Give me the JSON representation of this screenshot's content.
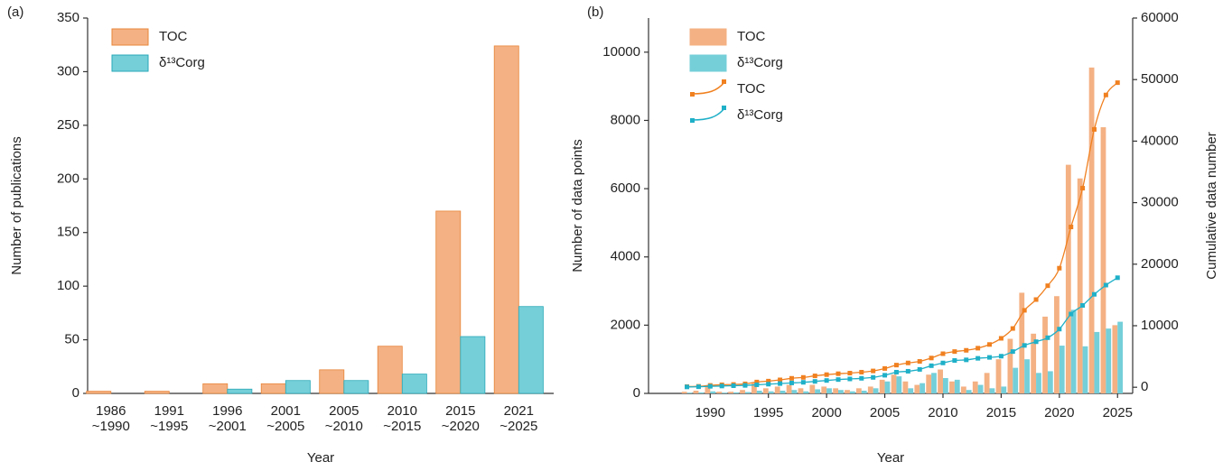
{
  "chart_data": [
    {
      "type": "bar",
      "panel_label": "(a)",
      "xlabel": "Year",
      "ylabel": "Number of publications",
      "categories": [
        [
          "1986",
          "~1990"
        ],
        [
          "1991",
          "~1995"
        ],
        [
          "1996",
          "~2001"
        ],
        [
          "2001",
          "~2005"
        ],
        [
          "2005",
          "~2010"
        ],
        [
          "2010",
          "~2015"
        ],
        [
          "2015",
          "~2020"
        ],
        [
          "2021",
          "~2025"
        ]
      ],
      "series": [
        {
          "name": "TOC",
          "color": "#f4b183",
          "edge": "#e8863a",
          "values": [
            2,
            2,
            9,
            9,
            22,
            44,
            170,
            324
          ]
        },
        {
          "name": "δ¹³Corg",
          "color": "#74cfd9",
          "edge": "#2aa9b8",
          "values": [
            0,
            0,
            4,
            12,
            12,
            18,
            53,
            81
          ]
        }
      ],
      "ylim": [
        0,
        350
      ],
      "yticks": [
        0,
        50,
        100,
        150,
        200,
        250,
        300,
        350
      ]
    },
    {
      "type": "combo",
      "panel_label": "(b)",
      "xlabel": "Year",
      "ylabel": "Number of data points",
      "y2label": "Cumulative data number",
      "x": [
        1988,
        1989,
        1990,
        1991,
        1992,
        1993,
        1994,
        1995,
        1996,
        1997,
        1998,
        1999,
        2000,
        2001,
        2002,
        2003,
        2004,
        2005,
        2006,
        2007,
        2008,
        2009,
        2010,
        2011,
        2012,
        2013,
        2014,
        2015,
        2016,
        2017,
        2018,
        2019,
        2020,
        2021,
        2022,
        2023,
        2024,
        2025
      ],
      "series": [
        {
          "name": "TOC",
          "type": "bar",
          "color": "#f4b183",
          "values": [
            50,
            80,
            200,
            50,
            50,
            100,
            300,
            150,
            200,
            250,
            150,
            250,
            200,
            150,
            100,
            150,
            200,
            400,
            550,
            350,
            250,
            550,
            700,
            350,
            200,
            350,
            600,
            1000,
            1600,
            2950,
            1750,
            2250,
            2850,
            6700,
            6300,
            9550,
            7800,
            2000
          ]
        },
        {
          "name": "δ¹³Corg",
          "type": "bar",
          "color": "#74cfd9",
          "values": [
            20,
            30,
            60,
            20,
            30,
            40,
            80,
            60,
            80,
            100,
            60,
            120,
            150,
            100,
            60,
            80,
            150,
            350,
            500,
            150,
            300,
            600,
            450,
            400,
            100,
            250,
            150,
            200,
            750,
            1000,
            600,
            650,
            1400,
            2450,
            1380,
            1800,
            1900,
            2100
          ]
        },
        {
          "name": "TOC",
          "type": "line",
          "axis": "y2",
          "color": "#f08020",
          "values": [
            100,
            150,
            300,
            400,
            450,
            550,
            850,
            1000,
            1200,
            1450,
            1600,
            1850,
            2050,
            2200,
            2300,
            2450,
            2650,
            3050,
            3600,
            3950,
            4200,
            4750,
            5450,
            5800,
            6000,
            6350,
            6950,
            7950,
            9550,
            12500,
            14250,
            16500,
            19350,
            26050,
            32350,
            41900,
            47500,
            49500
          ]
        },
        {
          "name": "δ¹³Corg",
          "type": "line",
          "axis": "y2",
          "color": "#1fb0c8",
          "values": [
            50,
            80,
            150,
            200,
            250,
            300,
            400,
            500,
            600,
            700,
            800,
            950,
            1100,
            1250,
            1350,
            1450,
            1600,
            1950,
            2450,
            2600,
            2900,
            3500,
            3950,
            4350,
            4450,
            4700,
            4850,
            5050,
            5800,
            6800,
            7400,
            8050,
            9450,
            11900,
            13300,
            15100,
            16600,
            17800
          ]
        }
      ],
      "xlim": [
        1984.7,
        2026.3
      ],
      "xticks": [
        1990,
        1995,
        2000,
        2005,
        2010,
        2015,
        2020,
        2025
      ],
      "ylim": [
        0,
        11000
      ],
      "yticks": [
        0,
        2000,
        4000,
        6000,
        8000,
        10000
      ],
      "y2lim": [
        -1000,
        60000
      ],
      "y2ticks": [
        0,
        10000,
        20000,
        30000,
        40000,
        50000,
        60000
      ]
    }
  ]
}
